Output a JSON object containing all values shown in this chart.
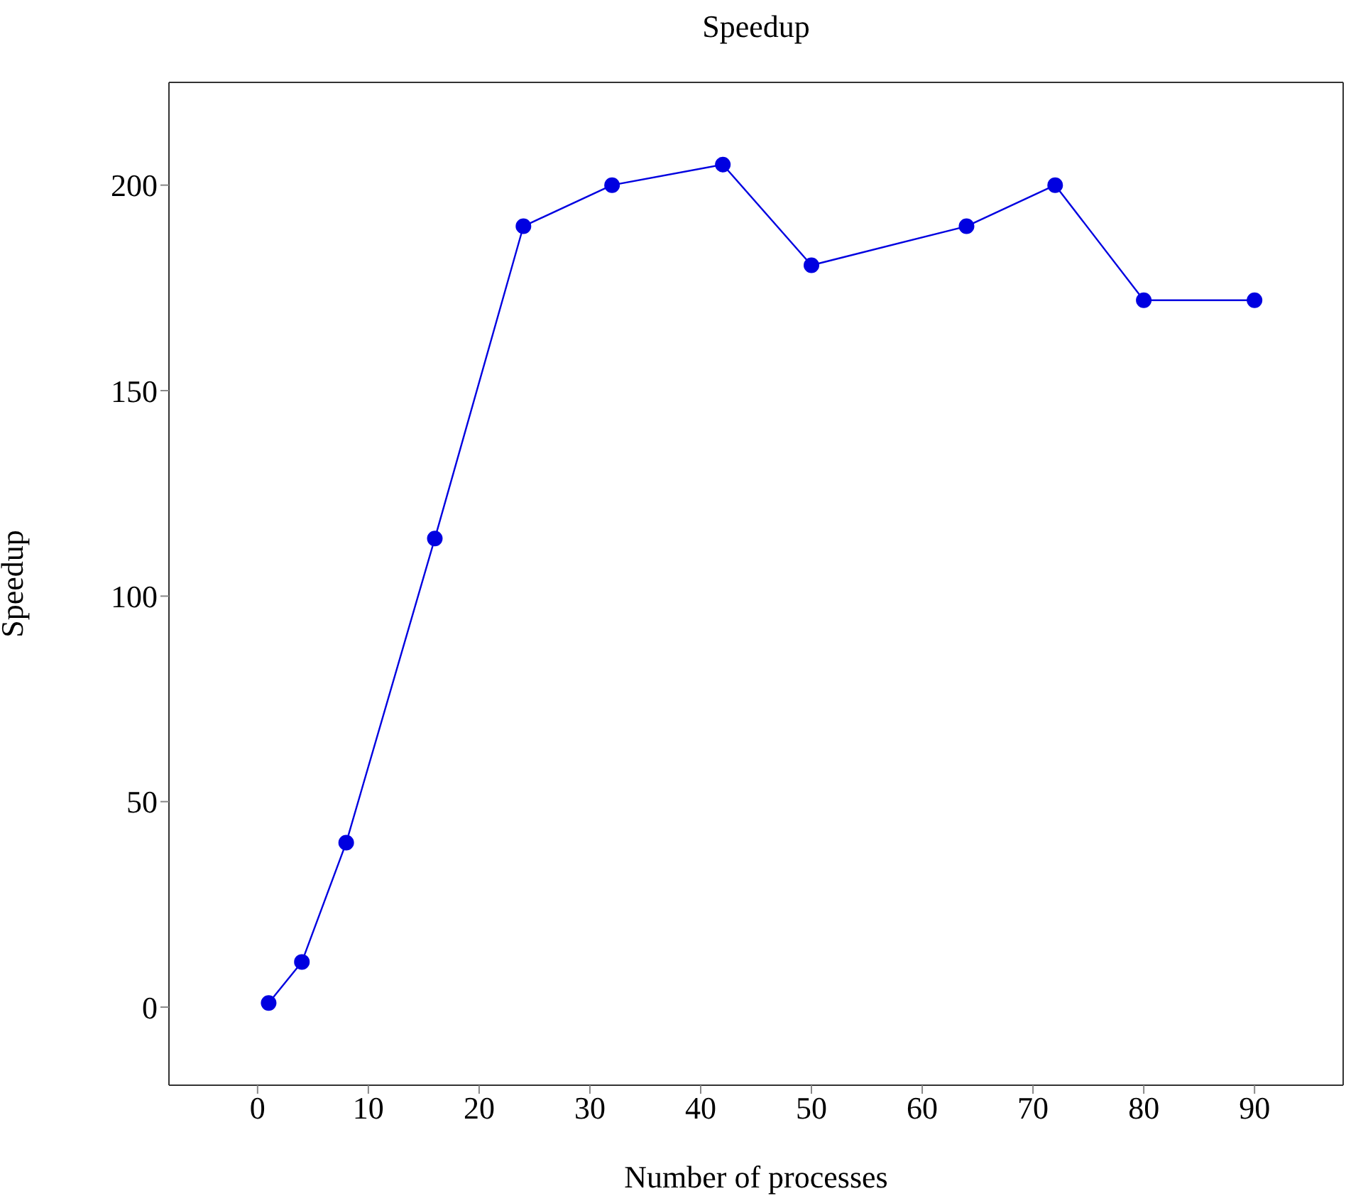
{
  "chart_data": {
    "type": "line",
    "title": "Speedup",
    "xlabel": "Number of processes",
    "ylabel": "Speedup",
    "x": [
      1,
      4,
      8,
      16,
      24,
      32,
      42,
      50,
      64,
      72,
      80,
      90
    ],
    "series": [
      {
        "color": "#0000e0",
        "values": [
          1,
          11,
          40,
          114,
          190,
          200,
          205,
          180.5,
          190,
          200,
          172,
          172
        ]
      }
    ],
    "xlim": [
      -8,
      98
    ],
    "xticks": [
      0,
      10,
      20,
      30,
      40,
      50,
      60,
      70,
      80,
      90
    ],
    "ylim": [
      -19,
      225
    ],
    "yticks": [
      0,
      50,
      100,
      150,
      200
    ],
    "marker": "circle",
    "grid": false
  }
}
